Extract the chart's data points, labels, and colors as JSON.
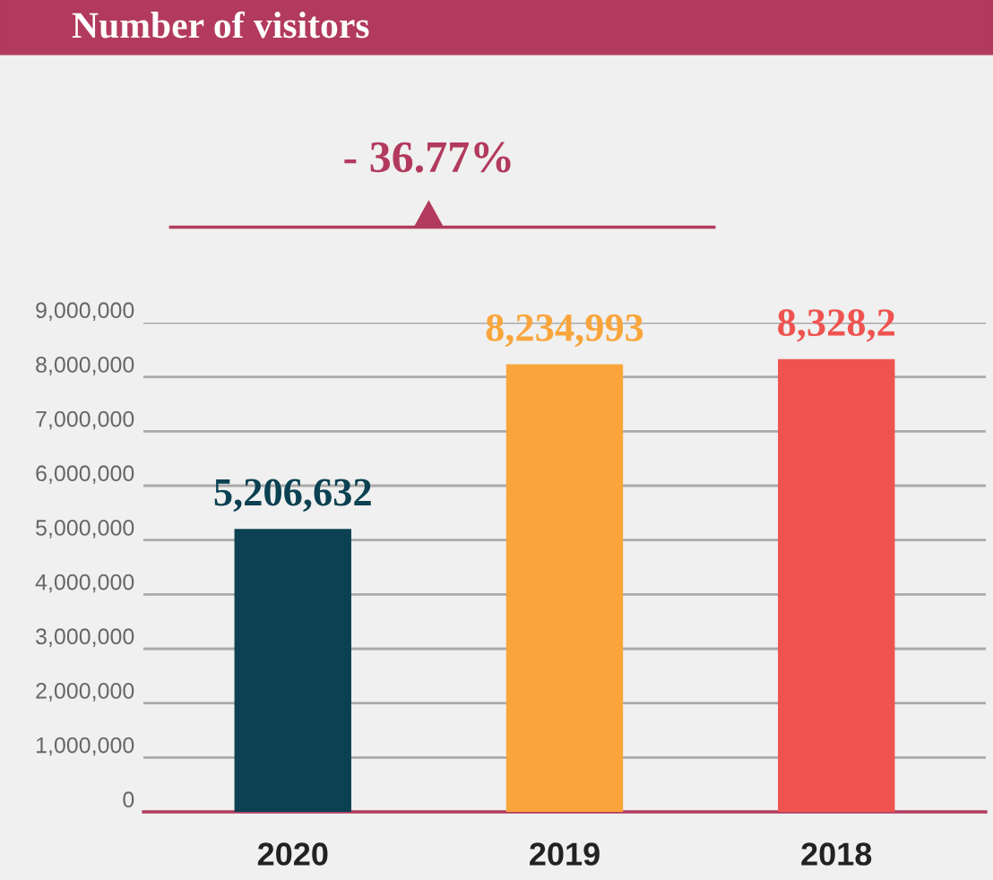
{
  "chart_data": {
    "type": "bar",
    "title": "Number of visitors",
    "categories": [
      "2020",
      "2019",
      "2018"
    ],
    "values": [
      5206632,
      8234993,
      8328200
    ],
    "colors": [
      "#0b4152",
      "#f9a53c",
      "#ef5350"
    ],
    "value_labels": [
      "5,206,632",
      "8,234,993",
      "8,328,2"
    ],
    "annotations": [
      "- 36.77%"
    ],
    "ylim": [
      0,
      9000000
    ],
    "yticks": [
      {
        "value": 0,
        "label": "0"
      },
      {
        "value": 1000000,
        "label": "1,000,000"
      },
      {
        "value": 2000000,
        "label": "2,000,000"
      },
      {
        "value": 3000000,
        "label": "3,000,000"
      },
      {
        "value": 4000000,
        "label": "4,000,000"
      },
      {
        "value": 5000000,
        "label": "5,000,000"
      },
      {
        "value": 6000000,
        "label": "6,000,000"
      },
      {
        "value": 7000000,
        "label": "7,000,000"
      },
      {
        "value": 8000000,
        "label": "8,000,000"
      },
      {
        "value": 9000000,
        "label": "9,000,000"
      }
    ],
    "grid": "y",
    "legend": false
  }
}
